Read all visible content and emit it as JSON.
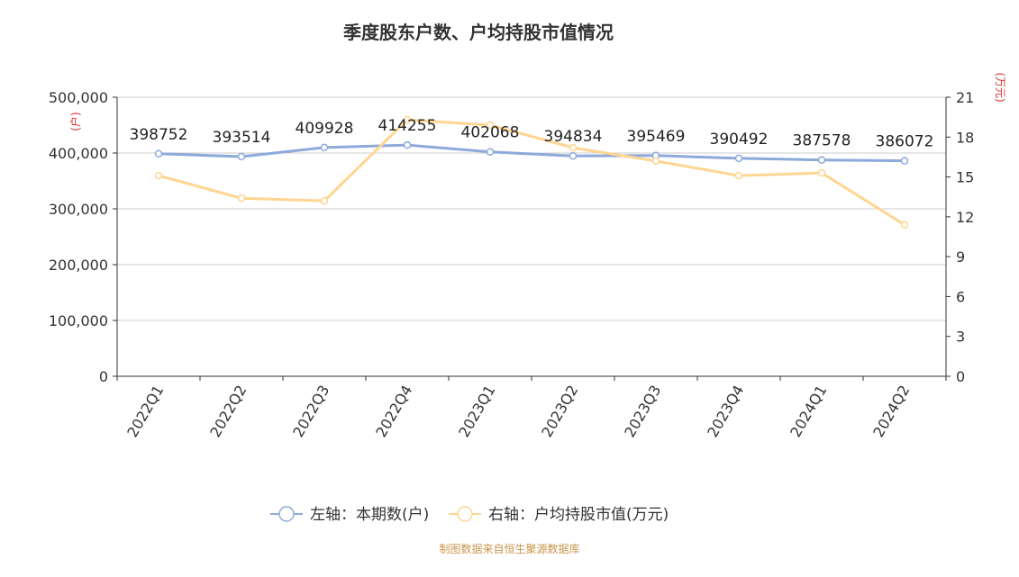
{
  "chart_data": {
    "type": "line",
    "title": "季度股东户数、户均持股市值情况",
    "categories": [
      "2022Q1",
      "2022Q2",
      "2022Q3",
      "2022Q4",
      "2023Q1",
      "2023Q2",
      "2023Q3",
      "2023Q4",
      "2024Q1",
      "2024Q2"
    ],
    "left_axis": {
      "unit_label": "(户)",
      "ylim": [
        0,
        500000
      ],
      "ticks": [
        "0",
        "100,000",
        "200,000",
        "300,000",
        "400,000",
        "500,000"
      ],
      "tick_values": [
        0,
        100000,
        200000,
        300000,
        400000,
        500000
      ]
    },
    "right_axis": {
      "unit_label": "(万元)",
      "ylim": [
        0,
        21
      ],
      "ticks": [
        "0",
        "3",
        "6",
        "9",
        "12",
        "15",
        "18",
        "21"
      ],
      "tick_values": [
        0,
        3,
        6,
        9,
        12,
        15,
        18,
        21
      ]
    },
    "series": [
      {
        "name": "左轴：本期数(户)",
        "axis": "left",
        "color": "#8eaadb",
        "values": [
          398752,
          393514,
          409928,
          414255,
          402068,
          394834,
          395469,
          390492,
          387578,
          386072
        ],
        "labels": [
          "398752",
          "393514",
          "409928",
          "414255",
          "402068",
          "394834",
          "395469",
          "390492",
          "387578",
          "386072"
        ]
      },
      {
        "name": "右轴：户均持股市值(万元)",
        "axis": "right",
        "color": "#ffd591",
        "values": [
          15.1,
          13.4,
          13.2,
          19.3,
          18.9,
          17.2,
          16.2,
          15.1,
          15.3,
          11.4
        ]
      }
    ],
    "grid": true,
    "legend_position": "bottom"
  },
  "source": "制图数据来自恒生聚源数据库"
}
